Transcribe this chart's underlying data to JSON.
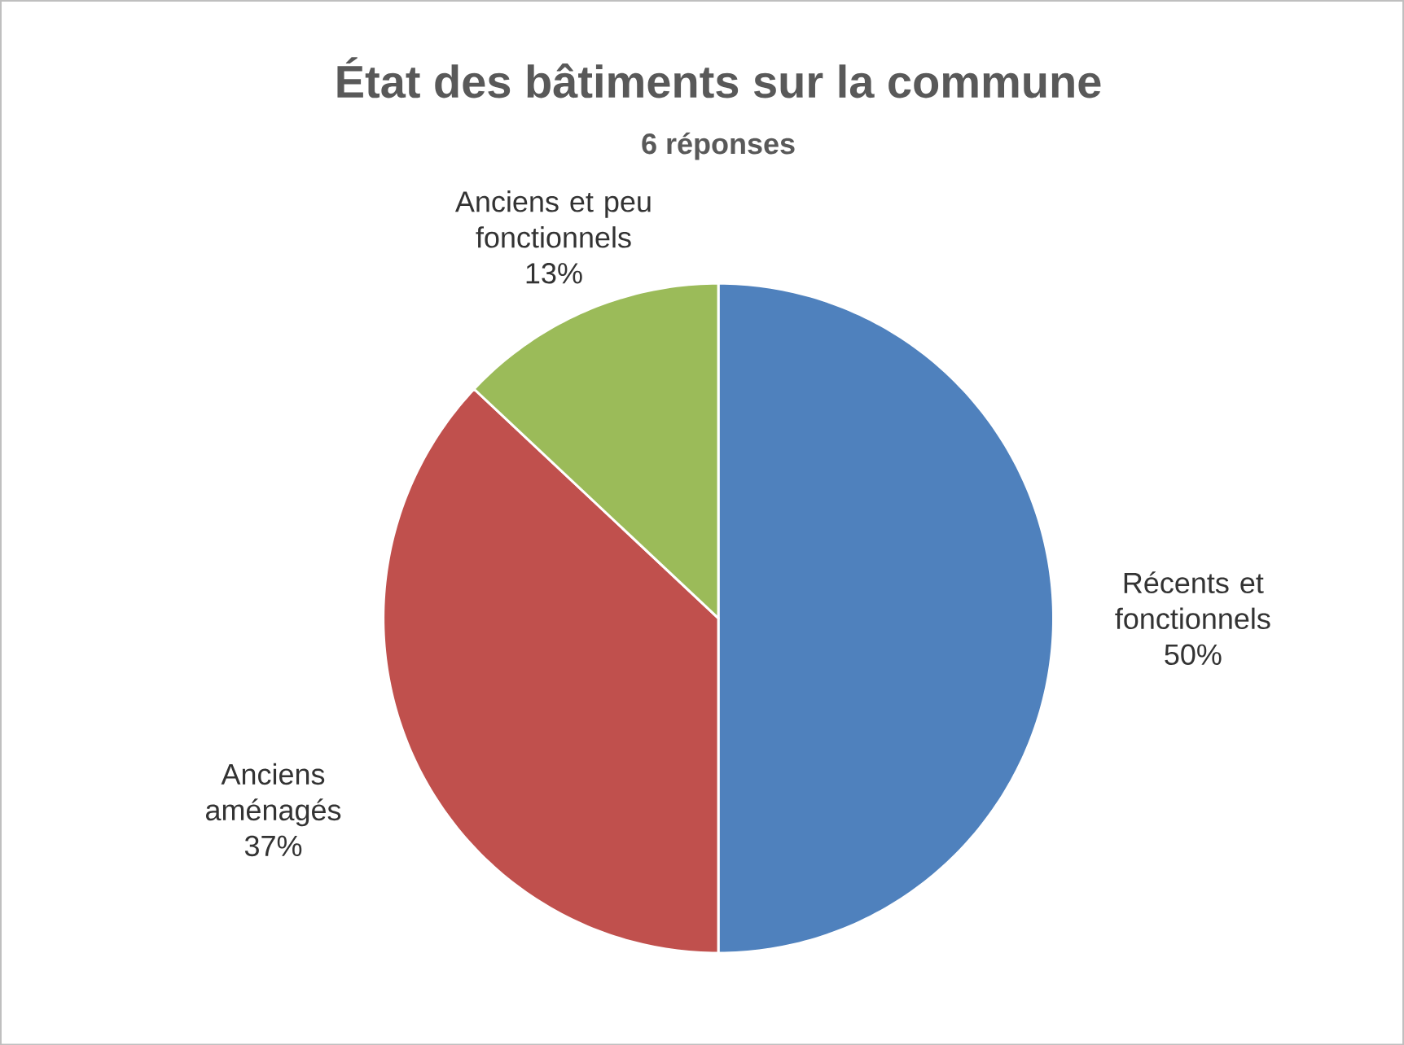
{
  "chart_data": {
    "type": "pie",
    "title": "État des bâtiments sur la commune",
    "subtitle": "6 réponses",
    "categories": [
      "Récents et fonctionnels",
      "Anciens aménagés",
      "Anciens et peu fonctionnels"
    ],
    "values": [
      50,
      37,
      13
    ],
    "value_labels": [
      "50%",
      "37%",
      "13%"
    ],
    "colors": [
      "#4f81bd",
      "#c0504d",
      "#9bbb59"
    ]
  }
}
